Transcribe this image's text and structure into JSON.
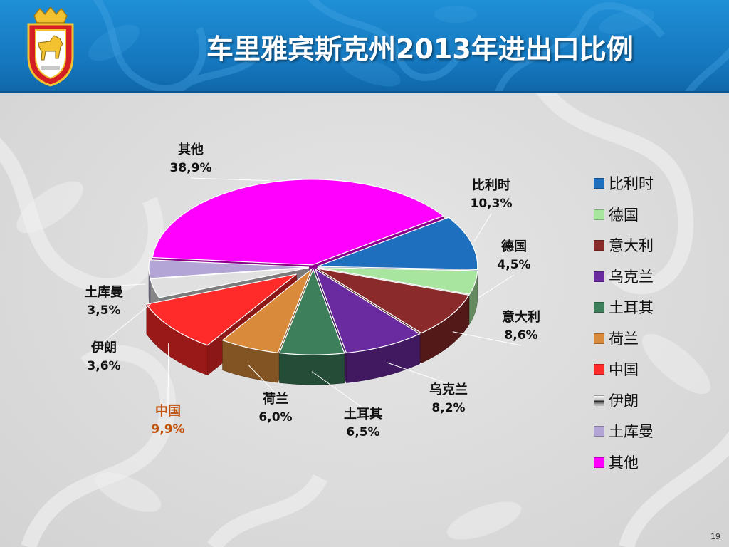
{
  "header": {
    "title": "车里雅宾斯克州2013年进出口比例"
  },
  "page_number": "19",
  "colors": {
    "header_blue": "#1a80c8",
    "accent_china_label": "#c0500a"
  },
  "chart_data": {
    "type": "pie",
    "title": "车里雅宾斯克州2013年进出口比例",
    "legend_position": "right",
    "three_d": true,
    "slices": [
      {
        "category": "比利时",
        "value": 10.3,
        "label": "10,3%",
        "color": "#1f6fbf",
        "exploded": false
      },
      {
        "category": "德国",
        "value": 4.5,
        "label": "4,5%",
        "color": "#a8e6a0",
        "exploded": false
      },
      {
        "category": "意大利",
        "value": 8.6,
        "label": "8,6%",
        "color": "#8b2a2a",
        "exploded": false
      },
      {
        "category": "乌克兰",
        "value": 8.2,
        "label": "8,2%",
        "color": "#6a2aa0",
        "exploded": false
      },
      {
        "category": "土耳其",
        "value": 6.5,
        "label": "6,5%",
        "color": "#3c7f5a",
        "exploded": false
      },
      {
        "category": "荷兰",
        "value": 6.0,
        "label": "6,0%",
        "color": "#d98a3a",
        "exploded": false
      },
      {
        "category": "中国",
        "value": 9.9,
        "label": "9,9%",
        "color": "#ff2a2a",
        "exploded": true
      },
      {
        "category": "伊朗",
        "value": 3.6,
        "label": "3,6%",
        "color": "#e0e0e0",
        "exploded": false
      },
      {
        "category": "土库曼",
        "value": 3.5,
        "label": "3,5%",
        "color": "#b3a6d6",
        "exploded": false
      },
      {
        "category": "其他",
        "value": 38.9,
        "label": "38,9%",
        "color": "#ff00ff",
        "exploded": false
      }
    ]
  }
}
